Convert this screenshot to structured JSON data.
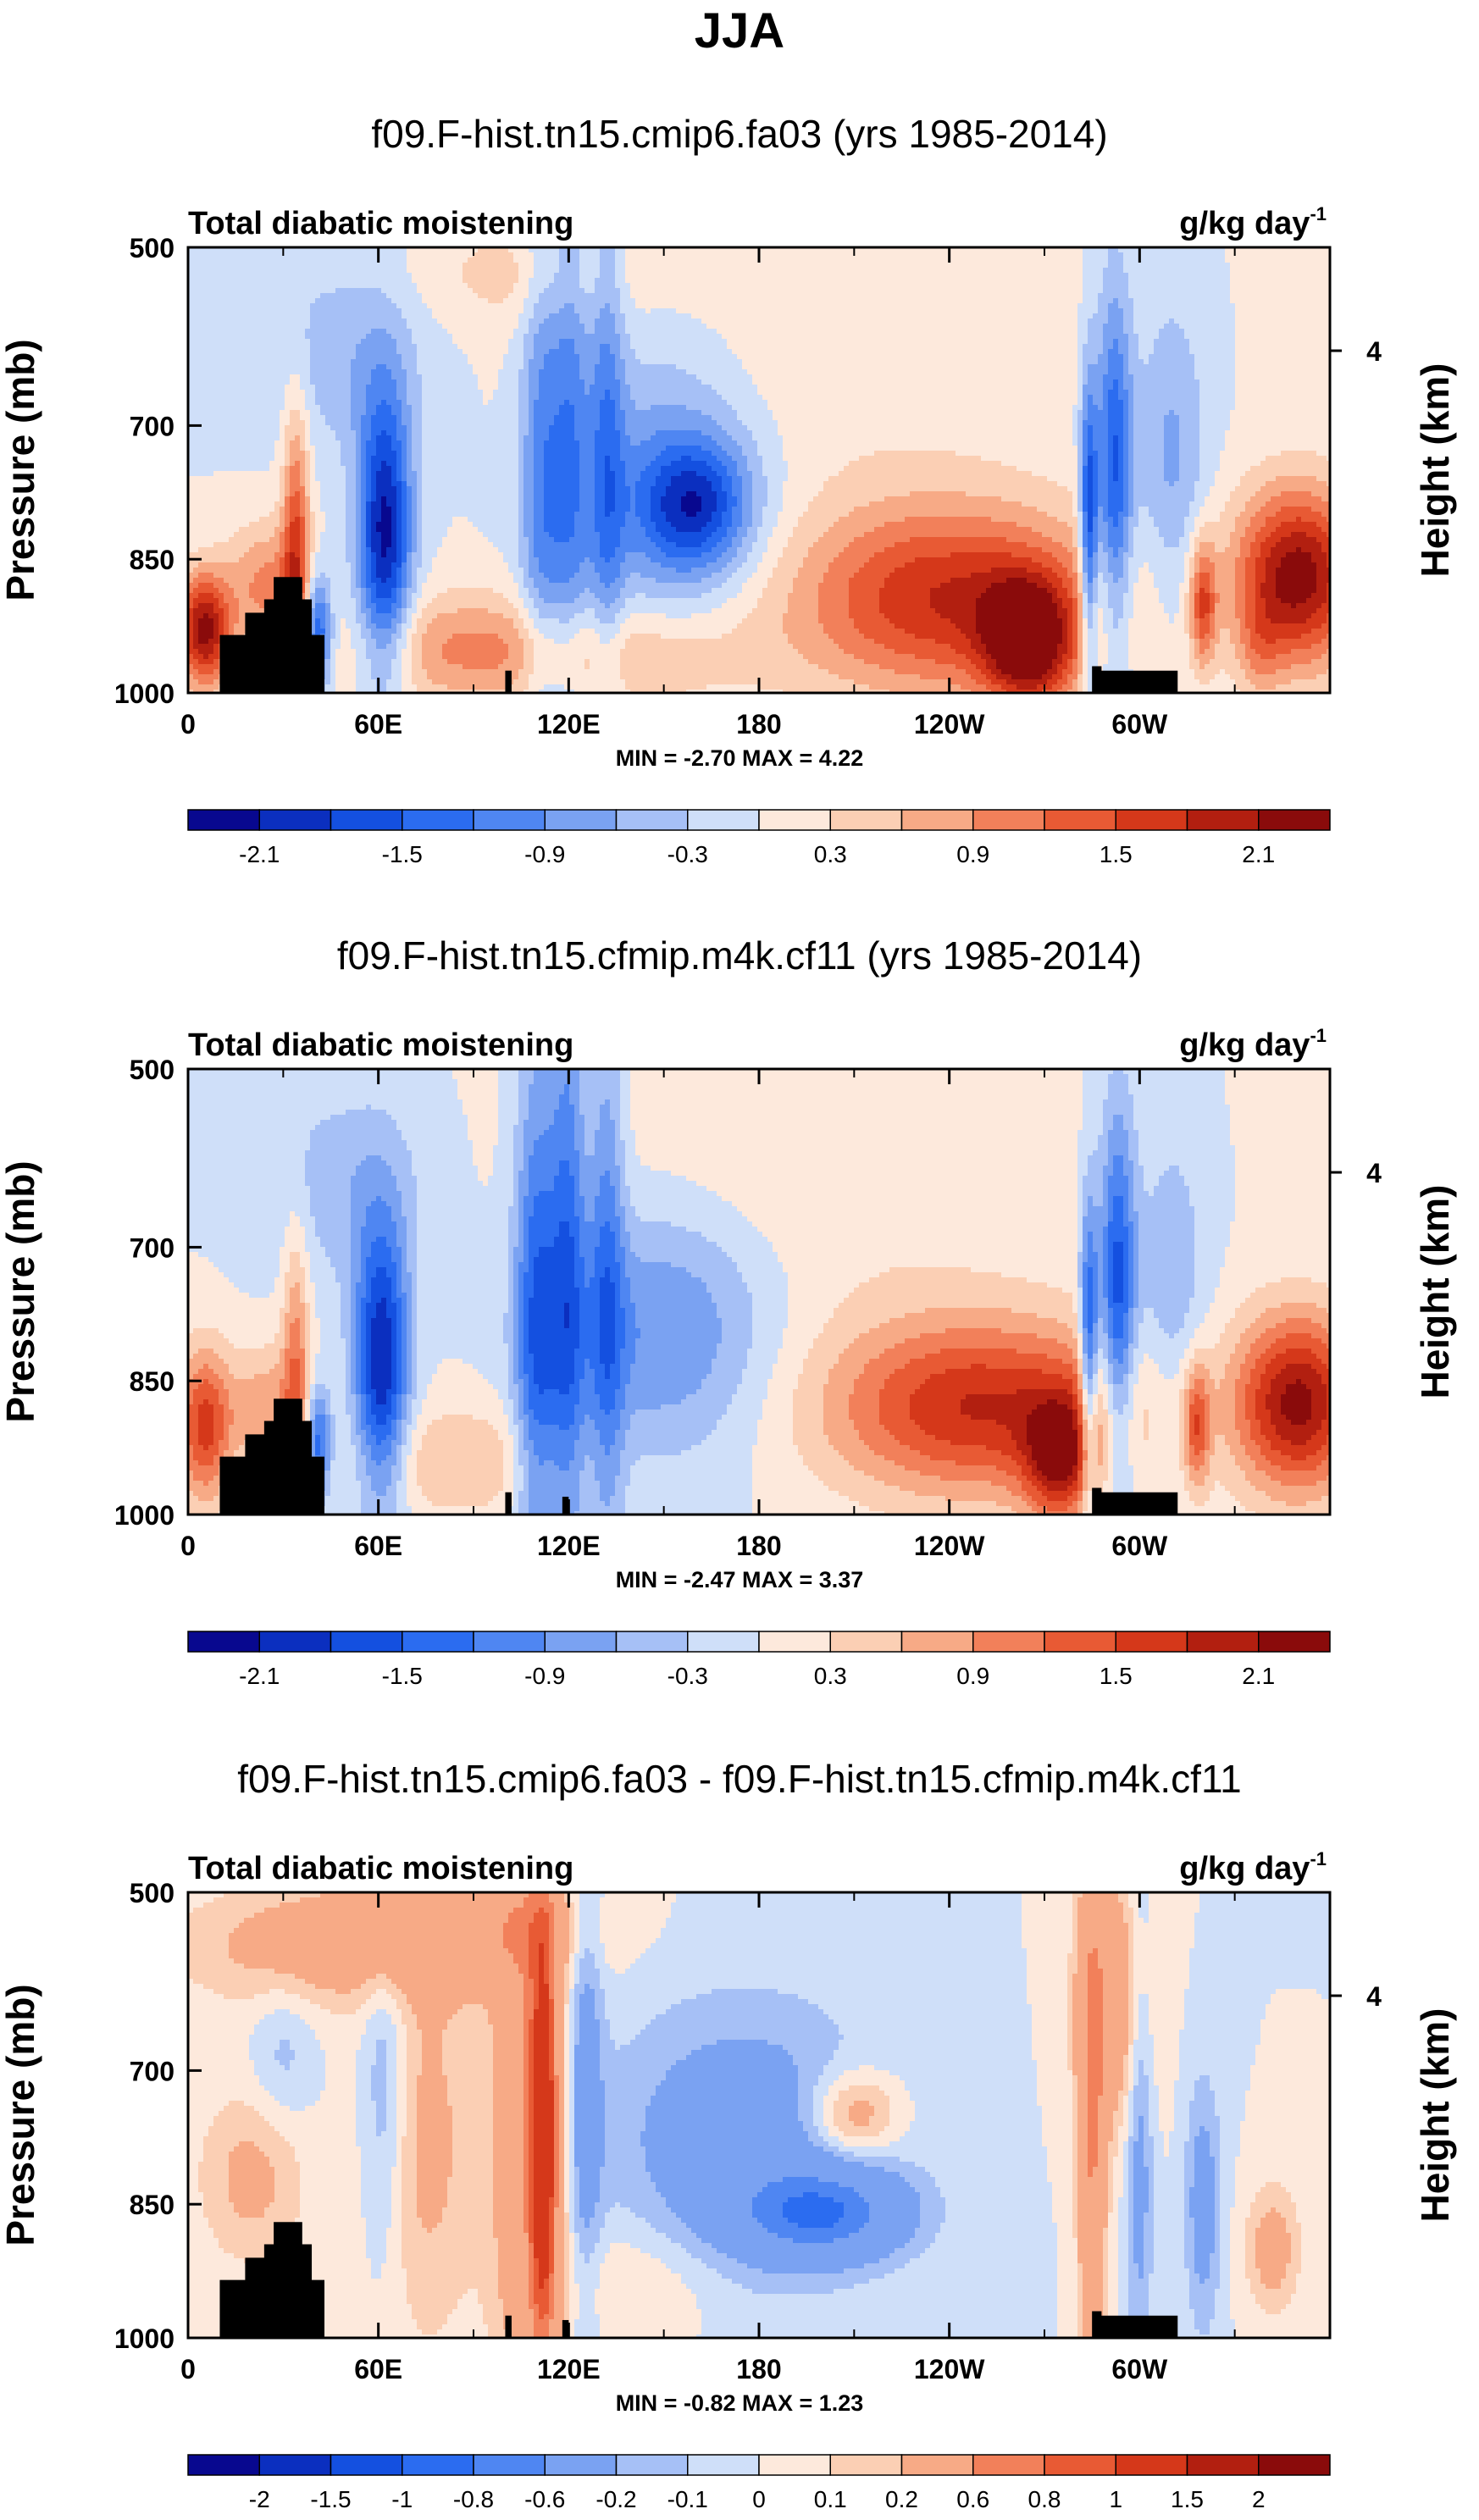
{
  "title": "JJA",
  "colors": {
    "diverging": [
      "#08088f",
      "#0b2fbf",
      "#1450e0",
      "#2b6cf0",
      "#4f86f2",
      "#7aa2f2",
      "#a6c0f6",
      "#cfdff9",
      "#fde9dc",
      "#fbcfb4",
      "#f7aa86",
      "#f2805a",
      "#e85a34",
      "#d5381a",
      "#b21f10",
      "#8a0b0b"
    ],
    "terrain": "#000000"
  },
  "chart_data": [
    {
      "type": "heatmap",
      "id": "panel1",
      "title": "f09.F-hist.tn15.cmip6.fa03 (yrs 1985-2014)",
      "left_label": "Total diabatic moistening",
      "right_label": "g/kg day",
      "right_label_sup": "-1",
      "ylabel": "Pressure (mb)",
      "ylabel_right": "Height (km)",
      "y_ticks": [
        "500",
        "700",
        "850",
        "1000"
      ],
      "y_tick_values": [
        500,
        700,
        850,
        1000
      ],
      "y_right_tick": "4",
      "y_right_tick_pressure": 616,
      "x_ticks": [
        "0",
        "60E",
        "120E",
        "180",
        "120W",
        "60W"
      ],
      "x_tick_values": [
        0,
        60,
        120,
        180,
        240,
        300
      ],
      "xlim": [
        0,
        360
      ],
      "ylim": [
        1000,
        500
      ],
      "stats": "MIN = -2.70  MAX =  4.22",
      "min": -2.7,
      "max": 4.22,
      "colorbar_labels": [
        "-2.1",
        "-1.5",
        "-0.9",
        "-0.3",
        "0.3",
        "0.9",
        "1.5",
        "2.1"
      ],
      "levels": [
        -2.1,
        -1.8,
        -1.5,
        -1.2,
        -0.9,
        -0.6,
        -0.3,
        0,
        0.3,
        0.6,
        0.9,
        1.2,
        1.5,
        1.8,
        2.1
      ],
      "features": [
        {
          "lon": 5,
          "p": 930,
          "sx": 6,
          "sy": 45,
          "v": 2.2
        },
        {
          "lon": 25,
          "p": 880,
          "sx": 9,
          "sy": 50,
          "v": 1.0
        },
        {
          "lon": 34,
          "p": 830,
          "sx": 3,
          "sy": 110,
          "v": 1.4
        },
        {
          "lon": 41,
          "p": 930,
          "sx": 3,
          "sy": 45,
          "v": -1.6
        },
        {
          "lon": 62,
          "p": 820,
          "sx": 6,
          "sy": 110,
          "v": -2.2
        },
        {
          "lon": 50,
          "p": 620,
          "sx": 18,
          "sy": 80,
          "v": -0.5
        },
        {
          "lon": 85,
          "p": 950,
          "sx": 22,
          "sy": 45,
          "v": 0.8
        },
        {
          "lon": 112,
          "p": 760,
          "sx": 5,
          "sy": 220,
          "v": -1.0
        },
        {
          "lon": 121,
          "p": 700,
          "sx": 4,
          "sy": 250,
          "v": -0.8
        },
        {
          "lon": 132,
          "p": 720,
          "sx": 4,
          "sy": 230,
          "v": -0.9
        },
        {
          "lon": 150,
          "p": 760,
          "sx": 22,
          "sy": 120,
          "v": -0.9
        },
        {
          "lon": 160,
          "p": 790,
          "sx": 12,
          "sy": 50,
          "v": -1.5
        },
        {
          "lon": 135,
          "p": 960,
          "sx": 30,
          "sy": 45,
          "v": 0.7
        },
        {
          "lon": 240,
          "p": 895,
          "sx": 35,
          "sy": 75,
          "v": 1.8
        },
        {
          "lon": 265,
          "p": 945,
          "sx": 10,
          "sy": 50,
          "v": 2.0
        },
        {
          "lon": 195,
          "p": 600,
          "sx": 55,
          "sy": 140,
          "v": 0.3
        },
        {
          "lon": 105,
          "p": 530,
          "sx": 25,
          "sy": 40,
          "v": 0.4
        },
        {
          "lon": 284,
          "p": 820,
          "sx": 2,
          "sy": 120,
          "v": -1.8
        },
        {
          "lon": 292,
          "p": 760,
          "sx": 4,
          "sy": 150,
          "v": -1.6
        },
        {
          "lon": 310,
          "p": 740,
          "sx": 8,
          "sy": 130,
          "v": -0.7
        },
        {
          "lon": 320,
          "p": 900,
          "sx": 3,
          "sy": 50,
          "v": 1.4
        },
        {
          "lon": 350,
          "p": 870,
          "sx": 14,
          "sy": 70,
          "v": 2.3
        },
        {
          "lon": 338,
          "p": 950,
          "sx": 5,
          "sy": 40,
          "v": 0.5
        }
      ],
      "terrain": [
        [
          10,
          935
        ],
        [
          18,
          910
        ],
        [
          24,
          895
        ],
        [
          27,
          870
        ],
        [
          33,
          870
        ],
        [
          36,
          895
        ],
        [
          39,
          935
        ],
        [
          43,
          1000
        ],
        [
          100,
          975
        ],
        [
          102,
          1000
        ],
        [
          285,
          970
        ],
        [
          287,
          970
        ],
        [
          288,
          975
        ],
        [
          310,
          975
        ],
        [
          312,
          1000
        ]
      ]
    },
    {
      "type": "heatmap",
      "id": "panel2",
      "title": "f09.F-hist.tn15.cfmip.m4k.cf11 (yrs 1985-2014)",
      "left_label": "Total diabatic moistening",
      "right_label": "g/kg day",
      "right_label_sup": "-1",
      "ylabel": "Pressure (mb)",
      "ylabel_right": "Height (km)",
      "y_ticks": [
        "500",
        "700",
        "850",
        "1000"
      ],
      "y_tick_values": [
        500,
        700,
        850,
        1000
      ],
      "y_right_tick": "4",
      "y_right_tick_pressure": 616,
      "x_ticks": [
        "0",
        "60E",
        "120E",
        "180",
        "120W",
        "60W"
      ],
      "x_tick_values": [
        0,
        60,
        120,
        180,
        240,
        300
      ],
      "xlim": [
        0,
        360
      ],
      "ylim": [
        1000,
        500
      ],
      "stats": "MIN = -2.47  MAX =  3.37",
      "min": -2.47,
      "max": 3.37,
      "colorbar_labels": [
        "-2.1",
        "-1.5",
        "-0.9",
        "-0.3",
        "0.3",
        "0.9",
        "1.5",
        "2.1"
      ],
      "levels": [
        -2.1,
        -1.8,
        -1.5,
        -1.2,
        -0.9,
        -0.6,
        -0.3,
        0,
        0.3,
        0.6,
        0.9,
        1.2,
        1.5,
        1.8,
        2.1
      ],
      "features": [
        {
          "lon": 5,
          "p": 900,
          "sx": 6,
          "sy": 60,
          "v": 1.6
        },
        {
          "lon": 25,
          "p": 880,
          "sx": 9,
          "sy": 50,
          "v": 0.8
        },
        {
          "lon": 34,
          "p": 830,
          "sx": 3,
          "sy": 110,
          "v": 1.0
        },
        {
          "lon": 41,
          "p": 920,
          "sx": 3,
          "sy": 45,
          "v": -1.5
        },
        {
          "lon": 61,
          "p": 830,
          "sx": 6,
          "sy": 110,
          "v": -2.1
        },
        {
          "lon": 50,
          "p": 630,
          "sx": 18,
          "sy": 80,
          "v": -0.5
        },
        {
          "lon": 85,
          "p": 940,
          "sx": 22,
          "sy": 45,
          "v": 0.6
        },
        {
          "lon": 110,
          "p": 780,
          "sx": 5,
          "sy": 220,
          "v": -1.4
        },
        {
          "lon": 120,
          "p": 720,
          "sx": 4,
          "sy": 250,
          "v": -1.2
        },
        {
          "lon": 132,
          "p": 730,
          "sx": 4,
          "sy": 230,
          "v": -1.0
        },
        {
          "lon": 150,
          "p": 790,
          "sx": 25,
          "sy": 100,
          "v": -1.0
        },
        {
          "lon": 250,
          "p": 880,
          "sx": 35,
          "sy": 70,
          "v": 1.8
        },
        {
          "lon": 275,
          "p": 940,
          "sx": 8,
          "sy": 50,
          "v": 1.6
        },
        {
          "lon": 195,
          "p": 620,
          "sx": 55,
          "sy": 140,
          "v": 0.3
        },
        {
          "lon": 284,
          "p": 820,
          "sx": 2,
          "sy": 120,
          "v": -1.7
        },
        {
          "lon": 293,
          "p": 760,
          "sx": 4,
          "sy": 150,
          "v": -1.7
        },
        {
          "lon": 310,
          "p": 750,
          "sx": 8,
          "sy": 130,
          "v": -0.6
        },
        {
          "lon": 318,
          "p": 900,
          "sx": 3,
          "sy": 50,
          "v": 1.3
        },
        {
          "lon": 350,
          "p": 875,
          "sx": 14,
          "sy": 70,
          "v": 2.2
        }
      ],
      "terrain": [
        [
          10,
          935
        ],
        [
          18,
          910
        ],
        [
          24,
          895
        ],
        [
          27,
          870
        ],
        [
          33,
          870
        ],
        [
          36,
          895
        ],
        [
          39,
          935
        ],
        [
          43,
          1000
        ],
        [
          100,
          975
        ],
        [
          102,
          1000
        ],
        [
          118,
          980
        ],
        [
          120,
          1000
        ],
        [
          285,
          970
        ],
        [
          287,
          970
        ],
        [
          288,
          975
        ],
        [
          310,
          975
        ],
        [
          312,
          1000
        ]
      ]
    },
    {
      "type": "heatmap",
      "id": "panel3",
      "title": "f09.F-hist.tn15.cmip6.fa03 - f09.F-hist.tn15.cfmip.m4k.cf11",
      "left_label": "Total diabatic moistening",
      "right_label": "g/kg day",
      "right_label_sup": "-1",
      "ylabel": "Pressure (mb)",
      "ylabel_right": "Height (km)",
      "y_ticks": [
        "500",
        "700",
        "850",
        "1000"
      ],
      "y_tick_values": [
        500,
        700,
        850,
        1000
      ],
      "y_right_tick": "4",
      "y_right_tick_pressure": 616,
      "x_ticks": [
        "0",
        "60E",
        "120E",
        "180",
        "120W",
        "60W"
      ],
      "x_tick_values": [
        0,
        60,
        120,
        180,
        240,
        300
      ],
      "xlim": [
        0,
        360
      ],
      "ylim": [
        1000,
        500
      ],
      "stats": "MIN = -0.82  MAX =  1.23",
      "min": -0.82,
      "max": 1.23,
      "colorbar_labels": [
        "-2",
        "-1.5",
        "-1",
        "-0.8",
        "-0.6",
        "-0.2",
        "-0.1",
        "0",
        "0.1",
        "0.2",
        "0.6",
        "0.8",
        "1",
        "1.5",
        "2"
      ],
      "levels": [
        -2,
        -1.5,
        -1,
        -0.8,
        -0.6,
        -0.2,
        -0.1,
        0,
        0.1,
        0.2,
        0.6,
        0.8,
        1,
        1.5,
        2
      ],
      "features": [
        {
          "lon": 40,
          "p": 560,
          "sx": 30,
          "sy": 50,
          "v": 0.3
        },
        {
          "lon": 90,
          "p": 540,
          "sx": 25,
          "sy": 45,
          "v": 0.4
        },
        {
          "lon": 30,
          "p": 680,
          "sx": 7,
          "sy": 60,
          "v": -0.15
        },
        {
          "lon": 62,
          "p": 720,
          "sx": 5,
          "sy": 140,
          "v": -0.25
        },
        {
          "lon": 20,
          "p": 820,
          "sx": 12,
          "sy": 70,
          "v": 0.25
        },
        {
          "lon": 75,
          "p": 780,
          "sx": 12,
          "sy": 160,
          "v": 0.25
        },
        {
          "lon": 112,
          "p": 780,
          "sx": 3,
          "sy": 160,
          "v": 1.1
        },
        {
          "lon": 108,
          "p": 750,
          "sx": 8,
          "sy": 230,
          "v": 0.5
        },
        {
          "lon": 125,
          "p": 700,
          "sx": 4,
          "sy": 230,
          "v": -0.3
        },
        {
          "lon": 175,
          "p": 780,
          "sx": 30,
          "sy": 110,
          "v": -0.35
        },
        {
          "lon": 200,
          "p": 860,
          "sx": 18,
          "sy": 35,
          "v": -0.7
        },
        {
          "lon": 210,
          "p": 750,
          "sx": 10,
          "sy": 35,
          "v": 0.4
        },
        {
          "lon": 140,
          "p": 940,
          "sx": 20,
          "sy": 50,
          "v": 0.15
        },
        {
          "lon": 285,
          "p": 760,
          "sx": 3,
          "sy": 200,
          "v": 0.6
        },
        {
          "lon": 300,
          "p": 760,
          "sx": 3,
          "sy": 200,
          "v": -0.3
        },
        {
          "lon": 292,
          "p": 620,
          "sx": 8,
          "sy": 100,
          "v": 0.4
        },
        {
          "lon": 320,
          "p": 850,
          "sx": 4,
          "sy": 100,
          "v": -0.3
        },
        {
          "lon": 342,
          "p": 900,
          "sx": 6,
          "sy": 50,
          "v": 0.3
        }
      ],
      "terrain": [
        [
          10,
          935
        ],
        [
          18,
          910
        ],
        [
          24,
          895
        ],
        [
          27,
          870
        ],
        [
          33,
          870
        ],
        [
          36,
          895
        ],
        [
          39,
          935
        ],
        [
          43,
          1000
        ],
        [
          100,
          975
        ],
        [
          102,
          1000
        ],
        [
          118,
          980
        ],
        [
          120,
          1000
        ],
        [
          285,
          970
        ],
        [
          287,
          970
        ],
        [
          288,
          975
        ],
        [
          310,
          975
        ],
        [
          312,
          1000
        ]
      ]
    }
  ]
}
